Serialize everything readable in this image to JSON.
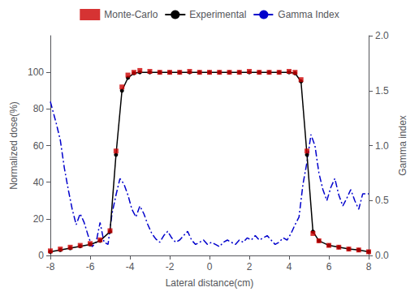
{
  "chart_data": {
    "type": "line",
    "xlabel": "Lateral distance(cm)",
    "ylabel": "Normalized dose(%)",
    "y2label": "Gamma index",
    "xlim": [
      -8,
      8
    ],
    "xticks": [
      -8,
      -6,
      -4,
      -2,
      0,
      2,
      4,
      6,
      8
    ],
    "ylim": [
      0,
      120
    ],
    "yticks": [
      0,
      20,
      40,
      60,
      80,
      100
    ],
    "y2lim": [
      0,
      2.0
    ],
    "y2ticks": [
      {
        "value": 0.0,
        "label": "0.0"
      },
      0.5,
      {
        "value": 1.0,
        "label": "1.0"
      },
      1.5,
      {
        "value": 2.0,
        "label": "2.0"
      }
    ],
    "grid": false,
    "legend": "top",
    "series": [
      {
        "name": "Monte-Carlo",
        "type": "scatter",
        "color": "#cc0000",
        "marker": "square",
        "x": [
          -8.0,
          -7.5,
          -7.0,
          -6.5,
          -6.0,
          -5.5,
          -5.0,
          -4.7,
          -4.4,
          -4.1,
          -3.8,
          -3.5,
          -3.0,
          -2.5,
          -2.0,
          -1.5,
          -1.0,
          -0.5,
          0.0,
          0.5,
          1.0,
          1.5,
          2.0,
          2.5,
          3.0,
          3.5,
          4.0,
          4.3,
          4.6,
          4.9,
          5.2,
          5.5,
          6.0,
          6.5,
          7.0,
          7.5,
          8.0
        ],
        "values": [
          2.5,
          3.5,
          4.5,
          5.5,
          6.5,
          8.5,
          13.5,
          57.0,
          92.0,
          98.5,
          100.0,
          101.0,
          100.5,
          100.0,
          100.0,
          100.0,
          100.5,
          100.0,
          100.0,
          100.0,
          100.0,
          100.0,
          100.5,
          100.0,
          100.0,
          100.0,
          100.5,
          100.0,
          96.0,
          57.0,
          12.0,
          8.0,
          5.5,
          4.5,
          3.5,
          3.0,
          2.0
        ]
      },
      {
        "name": "Experimental",
        "type": "line",
        "color": "#000000",
        "marker": "circle",
        "line_style": "solid",
        "x": [
          -8.0,
          -7.5,
          -7.0,
          -6.5,
          -6.0,
          -5.5,
          -5.0,
          -4.7,
          -4.4,
          -4.1,
          -3.8,
          -3.5,
          -3.0,
          -2.5,
          -2.0,
          -1.5,
          -1.0,
          -0.5,
          0.0,
          0.5,
          1.0,
          1.5,
          2.0,
          2.5,
          3.0,
          3.5,
          4.0,
          4.3,
          4.6,
          4.9,
          5.2,
          5.5,
          6.0,
          6.5,
          7.0,
          7.5,
          8.0
        ],
        "values": [
          2.0,
          3.0,
          4.0,
          5.0,
          6.0,
          8.0,
          13.0,
          55.0,
          90.0,
          97.0,
          99.5,
          100.0,
          100.0,
          100.0,
          100.0,
          100.0,
          100.0,
          100.0,
          100.0,
          100.0,
          100.0,
          100.0,
          100.0,
          100.0,
          100.0,
          100.0,
          100.0,
          99.5,
          95.0,
          55.0,
          13.0,
          8.0,
          5.5,
          4.5,
          3.5,
          3.0,
          2.0
        ]
      },
      {
        "name": "Gamma Index",
        "type": "line",
        "axis": "y2",
        "color": "#0000cc",
        "line_style": "dashdot",
        "x": [
          -8.0,
          -7.7,
          -7.5,
          -7.3,
          -7.1,
          -6.9,
          -6.7,
          -6.5,
          -6.3,
          -6.1,
          -5.9,
          -5.7,
          -5.5,
          -5.3,
          -5.1,
          -4.9,
          -4.7,
          -4.5,
          -4.3,
          -4.1,
          -3.9,
          -3.7,
          -3.5,
          -3.3,
          -3.1,
          -2.9,
          -2.7,
          -2.5,
          -2.3,
          -2.1,
          -1.9,
          -1.7,
          -1.5,
          -1.3,
          -1.1,
          -0.9,
          -0.7,
          -0.5,
          -0.3,
          -0.1,
          0.1,
          0.3,
          0.5,
          0.7,
          0.9,
          1.1,
          1.3,
          1.5,
          1.7,
          1.9,
          2.1,
          2.3,
          2.5,
          2.7,
          2.9,
          3.1,
          3.3,
          3.5,
          3.7,
          3.9,
          4.1,
          4.3,
          4.5,
          4.7,
          4.9,
          5.1,
          5.3,
          5.5,
          5.7,
          5.9,
          6.1,
          6.3,
          6.5,
          6.7,
          6.9,
          7.1,
          7.3,
          7.5,
          7.7,
          8.0
        ],
        "values": [
          1.4,
          1.2,
          1.05,
          0.8,
          0.6,
          0.42,
          0.28,
          0.38,
          0.3,
          0.18,
          0.08,
          0.12,
          0.3,
          0.12,
          0.1,
          0.38,
          0.55,
          0.7,
          0.65,
          0.55,
          0.42,
          0.35,
          0.45,
          0.38,
          0.28,
          0.2,
          0.15,
          0.12,
          0.18,
          0.22,
          0.16,
          0.12,
          0.14,
          0.18,
          0.22,
          0.14,
          0.1,
          0.12,
          0.14,
          0.1,
          0.12,
          0.1,
          0.08,
          0.12,
          0.14,
          0.12,
          0.1,
          0.14,
          0.12,
          0.16,
          0.14,
          0.18,
          0.14,
          0.16,
          0.18,
          0.14,
          0.1,
          0.12,
          0.16,
          0.14,
          0.2,
          0.28,
          0.35,
          0.65,
          0.85,
          1.1,
          1.0,
          0.75,
          0.6,
          0.5,
          0.62,
          0.7,
          0.55,
          0.45,
          0.52,
          0.6,
          0.5,
          0.42,
          0.56,
          0.56
        ]
      }
    ]
  }
}
